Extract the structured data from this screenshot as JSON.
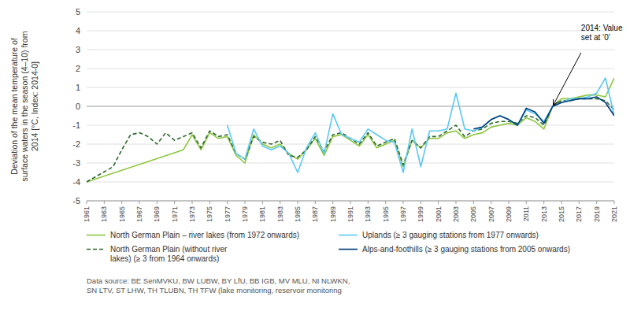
{
  "chart_data": {
    "type": "line",
    "ylabel": "Deviation of the mean temperature of\nsurface waters in the season (4–10) from\n2014 [°C, Index: 2014-0]",
    "xlim": [
      1961,
      2021
    ],
    "xticks": [
      1961,
      1963,
      1965,
      1967,
      1969,
      1971,
      1973,
      1975,
      1977,
      1979,
      1981,
      1983,
      1985,
      1987,
      1989,
      1991,
      1993,
      1995,
      1997,
      1999,
      2001,
      2003,
      2005,
      2007,
      2009,
      2011,
      2013,
      2015,
      2017,
      2019,
      2021
    ],
    "ylim": [
      -5,
      5
    ],
    "yticks": [
      -5,
      -4,
      -3,
      -2,
      -1,
      0,
      1,
      2,
      3,
      4,
      5
    ],
    "grid": true,
    "legend": "bottom",
    "annotations": [
      {
        "text": "2014: Value\nset at ‘0’",
        "x": 2014,
        "y": 0
      }
    ],
    "source": "Data source: BE SenMVKU, BW LUBW, BY LfU, BB IGB, MV MLU, NI NLWKN,\nSN LTV, ST LHW, TH TLUBN, TH TFW (lake monitoring, reservoir monitoring",
    "series": [
      {
        "name": "North German Plain – river lakes (from 1972 onwards)",
        "color": "#8dc63f",
        "line_style": "solid",
        "x": [
          1961,
          1972,
          1973,
          1974,
          1975,
          1976,
          1977,
          1978,
          1979,
          1980,
          1981,
          1982,
          1983,
          1984,
          1985,
          1986,
          1987,
          1988,
          1989,
          1990,
          1991,
          1992,
          1993,
          1994,
          1995,
          1996,
          1997,
          1998,
          1999,
          2000,
          2001,
          2002,
          2003,
          2004,
          2005,
          2006,
          2007,
          2008,
          2009,
          2010,
          2011,
          2012,
          2013,
          2014,
          2015,
          2016,
          2017,
          2018,
          2019,
          2020,
          2021
        ],
        "values": [
          -4.0,
          -2.3,
          -1.5,
          -2.3,
          -1.4,
          -1.7,
          -1.6,
          -2.6,
          -3.0,
          -1.5,
          -2.0,
          -2.2,
          -2.0,
          -2.5,
          -2.8,
          -2.3,
          -1.7,
          -2.6,
          -1.6,
          -1.5,
          -1.8,
          -2.1,
          -1.5,
          -2.2,
          -2.0,
          -1.8,
          -3.2,
          -1.8,
          -2.2,
          -1.7,
          -1.7,
          -1.4,
          -1.3,
          -1.7,
          -1.5,
          -1.4,
          -1.1,
          -1.0,
          -0.9,
          -1.0,
          -0.6,
          -0.8,
          -1.2,
          0.0,
          0.4,
          0.4,
          0.5,
          0.6,
          0.6,
          0.5,
          1.5
        ]
      },
      {
        "name": "North German Plain (without river\nlakes) (≥ 3 from 1964 onwards)",
        "color": "#2d6a2d",
        "line_style": "dashed",
        "x": [
          1961,
          1964,
          1965,
          1966,
          1967,
          1968,
          1969,
          1970,
          1971,
          1972,
          1973,
          1974,
          1975,
          1976,
          1977,
          1978,
          1979,
          1980,
          1981,
          1982,
          1983,
          1984,
          1985,
          1986,
          1987,
          1988,
          1989,
          1990,
          1991,
          1992,
          1993,
          1994,
          1995,
          1996,
          1997,
          1998,
          1999,
          2000,
          2001,
          2002,
          2003,
          2004,
          2005,
          2006,
          2007,
          2008,
          2009,
          2010,
          2011,
          2012,
          2013,
          2014,
          2015,
          2016,
          2017,
          2018,
          2019,
          2020,
          2021
        ],
        "values": [
          -4.0,
          -3.2,
          -2.3,
          -1.5,
          -1.4,
          -1.6,
          -2.0,
          -1.4,
          -1.8,
          -1.6,
          -1.4,
          -2.2,
          -1.3,
          -1.6,
          -1.5,
          -2.5,
          -2.8,
          -1.6,
          -1.9,
          -2.0,
          -1.8,
          -2.6,
          -2.7,
          -2.3,
          -1.6,
          -2.4,
          -1.5,
          -1.4,
          -1.7,
          -2.0,
          -1.4,
          -2.1,
          -1.9,
          -1.7,
          -3.1,
          -1.8,
          -2.2,
          -1.6,
          -1.6,
          -1.3,
          -1.0,
          -1.6,
          -1.3,
          -1.2,
          -0.9,
          -0.8,
          -0.8,
          -0.9,
          -0.5,
          -0.6,
          -1.0,
          0.0,
          0.3,
          0.3,
          0.4,
          0.4,
          0.4,
          0.3,
          -0.2
        ]
      },
      {
        "name": "Uplands (≥ 3 gauging stations from 1977 onwards)",
        "color": "#5bc8f5",
        "line_style": "solid",
        "x": [
          1977,
          1978,
          1979,
          1980,
          1981,
          1982,
          1983,
          1984,
          1985,
          1986,
          1987,
          1988,
          1989,
          1990,
          1991,
          1992,
          1993,
          1994,
          1995,
          1996,
          1997,
          1998,
          1999,
          2000,
          2001,
          2002,
          2003,
          2004,
          2005,
          2006,
          2007,
          2008,
          2009,
          2010,
          2011,
          2012,
          2013,
          2014,
          2015,
          2016,
          2017,
          2018,
          2019,
          2020,
          2021
        ],
        "values": [
          -1.0,
          -2.5,
          -2.8,
          -1.2,
          -2.1,
          -2.3,
          -2.1,
          -2.5,
          -3.5,
          -2.2,
          -1.4,
          -2.5,
          -0.4,
          -1.5,
          -1.7,
          -1.9,
          -1.2,
          -1.5,
          -1.8,
          -1.9,
          -3.5,
          -1.2,
          -3.2,
          -1.3,
          -1.3,
          -1.2,
          0.7,
          -1.2,
          -1.3,
          -1.1,
          -0.7,
          -0.5,
          -0.7,
          -1.0,
          -0.2,
          -0.4,
          -0.8,
          0.0,
          0.2,
          0.4,
          0.4,
          0.5,
          0.7,
          1.5,
          -0.5
        ]
      },
      {
        "name": "Alps-and-foothills (≥ 3 gauging stations from 2005 onwards)",
        "color": "#003d7a",
        "line_style": "solid",
        "x": [
          2005,
          2006,
          2007,
          2008,
          2009,
          2010,
          2011,
          2012,
          2013,
          2014,
          2015,
          2016,
          2017,
          2018,
          2019,
          2020,
          2021
        ],
        "values": [
          -1.2,
          -1.1,
          -0.7,
          -0.5,
          -0.7,
          -1.0,
          -0.1,
          -0.3,
          -0.9,
          0.0,
          0.2,
          0.3,
          0.4,
          0.4,
          0.5,
          0.2,
          -0.5
        ]
      }
    ]
  }
}
